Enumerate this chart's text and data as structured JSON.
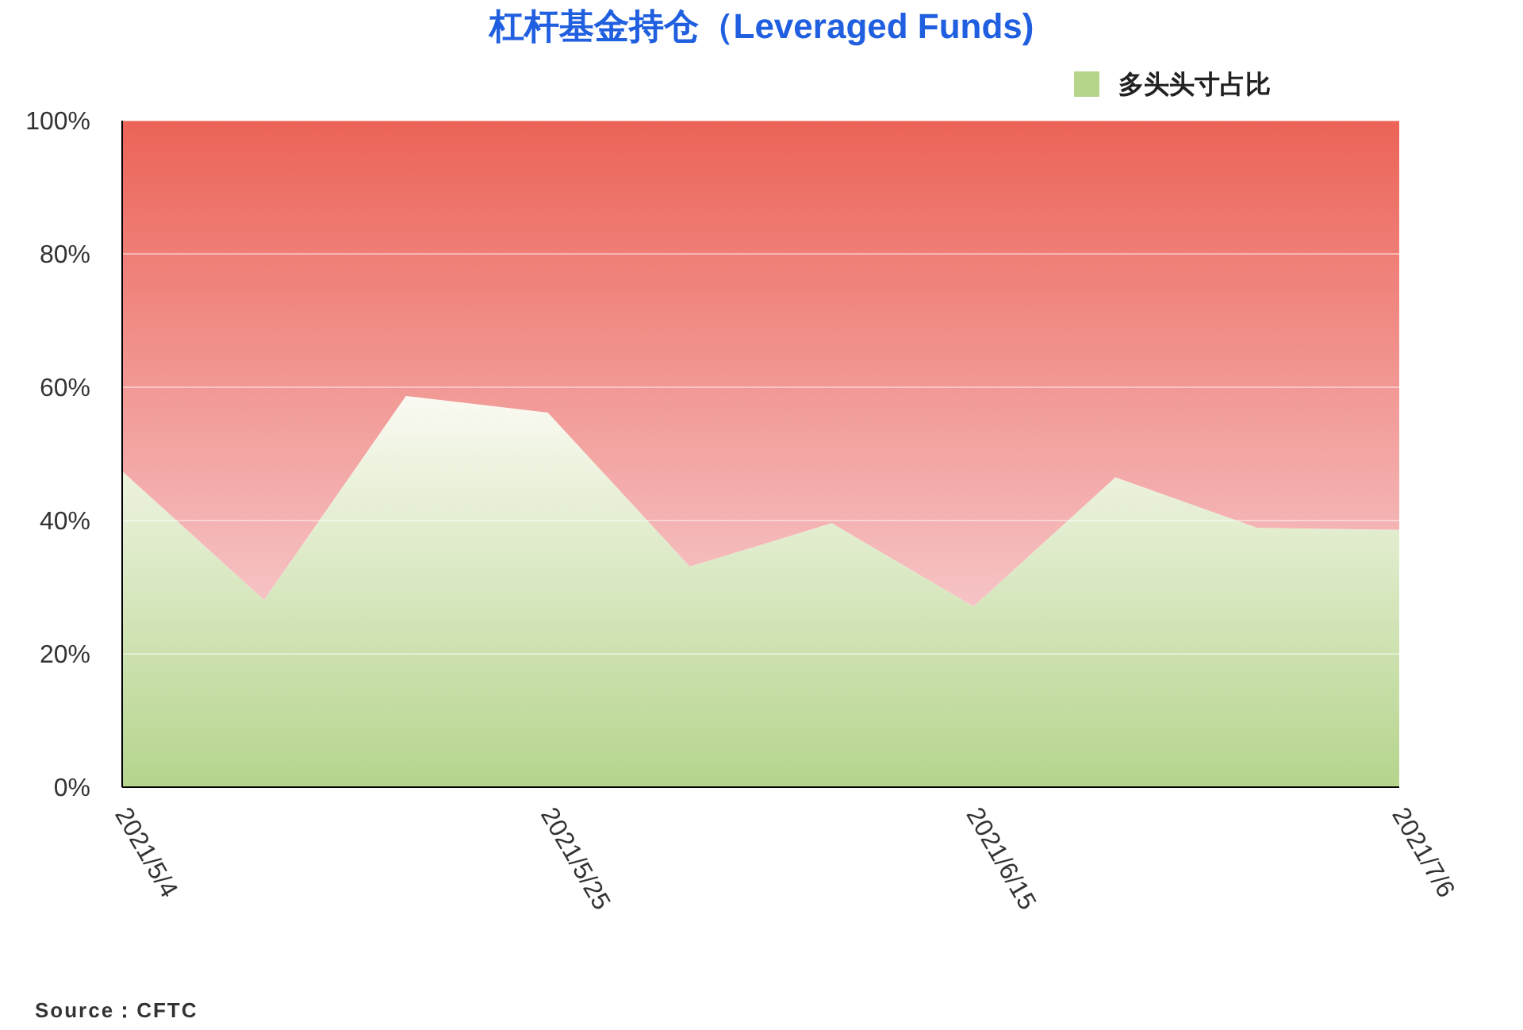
{
  "chart_data": {
    "type": "area",
    "title": "杠杆基金持仓（Leveraged Funds)",
    "stacked": true,
    "x": [
      "2021-05-04",
      "2021-05-11",
      "2021-05-18",
      "2021-05-25",
      "2021-06-01",
      "2021-06-08",
      "2021-06-15",
      "2021-06-22",
      "2021-06-29",
      "2021-07-06"
    ],
    "series": [
      {
        "name": "多头头寸占比",
        "color": "#b5d48c",
        "values": [
          47.4,
          28.1,
          58.7,
          56.2,
          33.1,
          39.6,
          27.1,
          46.5,
          38.9,
          38.6
        ]
      },
      {
        "color": "#ec6357",
        "values": [
          52.6,
          71.9,
          41.3,
          43.8,
          66.9,
          60.4,
          72.9,
          53.5,
          61.1,
          61.4
        ]
      }
    ],
    "xlim": [
      "2021-05-04",
      "2021-07-06"
    ],
    "xticks": [
      {
        "value": "2021-05-04",
        "label": "2021/5/4"
      },
      {
        "value": "2021-05-25",
        "label": "2021/5/25"
      },
      {
        "value": "2021-06-15",
        "label": "2021/6/15"
      },
      {
        "value": "2021-07-06",
        "label": "2021/7/6"
      }
    ],
    "ylim": [
      0,
      100
    ],
    "yticks": [
      {
        "value": 0,
        "label": "0%"
      },
      {
        "value": 20,
        "label": "20%"
      },
      {
        "value": 40,
        "label": "40%"
      },
      {
        "value": 60,
        "label": "60%"
      },
      {
        "value": 80,
        "label": "80%"
      },
      {
        "value": 100,
        "label": "100%"
      }
    ],
    "grid": "y",
    "legend": "top right",
    "annotations": [
      "Source：CFTC"
    ]
  }
}
